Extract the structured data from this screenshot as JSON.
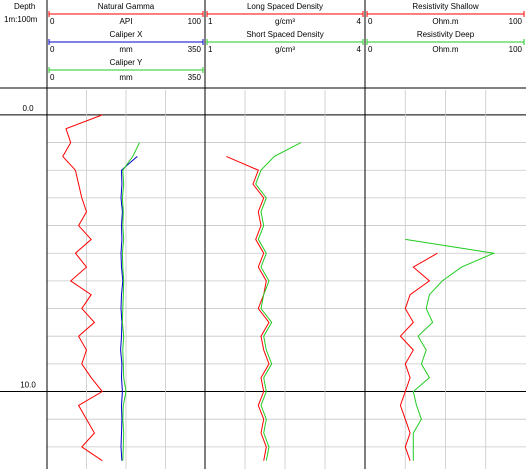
{
  "chart_data": {
    "type": "well-log",
    "depth_title": "Depth",
    "scale": "1m:100m",
    "depth": [
      0,
      0.5,
      1,
      1.5,
      2,
      2.5,
      3,
      3.5,
      4,
      4.5,
      5,
      5.5,
      6,
      6.5,
      7,
      7.5,
      8,
      8.5,
      9,
      9.5,
      10,
      10.5,
      11,
      11.5,
      12,
      12.5
    ],
    "ylim": [
      -0.9,
      12.8
    ],
    "yticks": [
      {
        "value": 0,
        "label": "0.0"
      },
      {
        "value": 10,
        "label": "10.0"
      }
    ],
    "grid_step": 1,
    "grid_divisions": 4,
    "tracks": [
      {
        "series": [
          {
            "name": "Natural Gamma",
            "color": "#ff0000",
            "unit": "API",
            "xlim": [
              0,
              100
            ],
            "values": [
              35,
              12,
              15,
              10,
              18,
              20,
              22,
              25,
              20,
              28,
              18,
              25,
              15,
              28,
              22,
              30,
              20,
              25,
              22,
              28,
              35,
              20,
              25,
              30,
              22,
              35
            ]
          },
          {
            "name": "Caliper X",
            "color": "#0000cc",
            "unit": "mm",
            "xlim": [
              0,
              350
            ],
            "values": [
              null,
              null,
              null,
              200,
              165,
              166,
              164,
              167,
              165,
              166,
              164,
              165,
              168,
              165,
              164,
              166,
              165,
              163,
              166,
              165,
              167,
              165,
              166,
              165,
              164,
              166
            ]
          },
          {
            "name": "Caliper Y",
            "color": "#22cc22",
            "unit": "mm",
            "xlim": [
              0,
              350
            ],
            "values": [
              null,
              null,
              205,
              190,
              168,
              170,
              167,
              169,
              168,
              170,
              167,
              168,
              170,
              169,
              168,
              167,
              170,
              168,
              169,
              170,
              175,
              169,
              168,
              170,
              169,
              168
            ]
          }
        ]
      },
      {
        "series": [
          {
            "name": "Long Spaced Density",
            "color": "#ff0000",
            "unit": "g/cm³",
            "xlim": [
              1,
              4
            ],
            "values": [
              null,
              null,
              null,
              1.4,
              2.0,
              1.9,
              2.1,
              2.0,
              2.05,
              1.95,
              2.1,
              2.0,
              2.15,
              2.1,
              2.0,
              2.2,
              2.05,
              2.1,
              2.2,
              2.05,
              2.1,
              2.0,
              2.1,
              2.05,
              2.15,
              2.1
            ]
          },
          {
            "name": "Short Spaced Density",
            "color": "#22cc22",
            "unit": "g/cm³",
            "xlim": [
              1,
              4
            ],
            "values": [
              null,
              null,
              2.8,
              2.3,
              2.05,
              1.95,
              2.15,
              2.05,
              2.1,
              2.0,
              2.15,
              2.05,
              2.2,
              2.1,
              2.05,
              2.25,
              2.1,
              2.15,
              2.25,
              2.1,
              2.15,
              2.05,
              2.15,
              2.1,
              2.2,
              2.15
            ]
          }
        ]
      },
      {
        "series": [
          {
            "name": "Resistivity Shallow",
            "color": "#ff0000",
            "unit": "Ohm.m",
            "xlim": [
              0,
              100
            ],
            "values": [
              null,
              null,
              null,
              null,
              null,
              null,
              null,
              null,
              null,
              null,
              45,
              30,
              40,
              28,
              25,
              30,
              22,
              30,
              25,
              28,
              25,
              22,
              25,
              28,
              25,
              28
            ]
          },
          {
            "name": "Resistivity Deep",
            "color": "#22cc22",
            "unit": "Ohm.m",
            "xlim": [
              0,
              100
            ],
            "values": [
              null,
              null,
              null,
              null,
              null,
              null,
              null,
              null,
              null,
              25,
              80,
              60,
              48,
              40,
              38,
              42,
              33,
              38,
              35,
              40,
              30,
              32,
              35,
              30,
              30,
              30
            ]
          }
        ]
      }
    ]
  }
}
